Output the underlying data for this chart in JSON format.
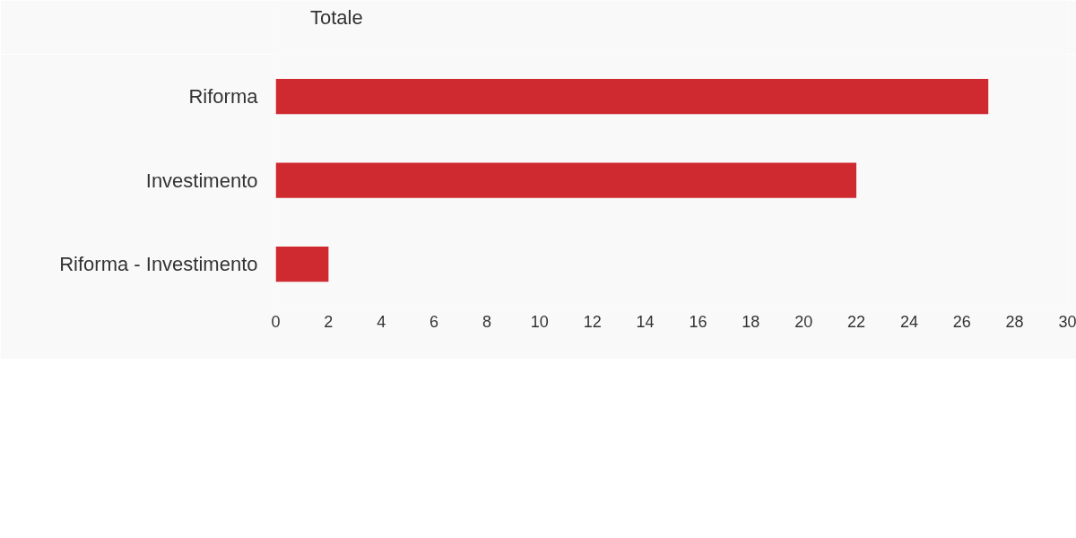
{
  "chart_data": {
    "type": "bar",
    "orientation": "horizontal",
    "categories": [
      "Riforma",
      "Investimento",
      "Riforma - Investimento"
    ],
    "series": [
      {
        "name": "Totale",
        "color": "#cf2a30",
        "values": [
          27,
          22,
          2
        ]
      }
    ],
    "xlim": [
      0,
      30
    ],
    "xticks": [
      0,
      2,
      4,
      6,
      8,
      10,
      12,
      14,
      16,
      18,
      20,
      22,
      24,
      26,
      28,
      30
    ],
    "grid": false,
    "legend": "top left"
  }
}
